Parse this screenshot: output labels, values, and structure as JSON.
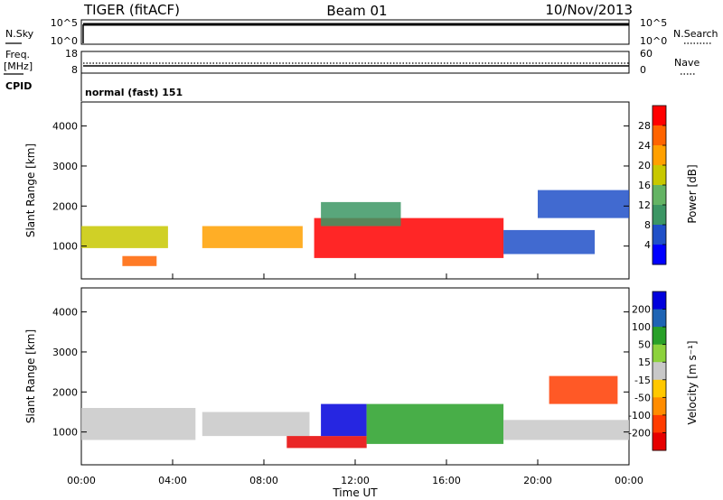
{
  "header": {
    "station": "TIGER (fitACF)",
    "beam": "Beam 01",
    "date": "10/Nov/2013"
  },
  "status_panels": {
    "nsky_label": "N.Sky",
    "nsearch_label": "N.Search",
    "nsky_ticks": [
      "10^5",
      "10^0"
    ],
    "nsearch_ticks": [
      "10^5",
      "10^0"
    ],
    "freq_label_line1": "Freq.",
    "freq_label_line2": "[MHz]",
    "freq_ticks": [
      "18",
      "8"
    ],
    "nave_label": "Nave",
    "nave_ticks": [
      "60",
      "0"
    ],
    "cpid_label": "CPID",
    "cpid_value": "normal (fast) 151"
  },
  "chart_data": [
    {
      "type": "heatmap",
      "quantity": "Power",
      "ylabel": "Slant Range [km]",
      "xlabel": "Time UT",
      "ylim": [
        180,
        4600
      ],
      "yticks": [
        "1000",
        "2000",
        "3000",
        "4000"
      ],
      "xticks": [
        "00:00",
        "04:00",
        "08:00",
        "12:00",
        "16:00",
        "20:00",
        "00:00"
      ],
      "colorbar": {
        "label": "Power [dB]",
        "ticks": [
          "28",
          "24",
          "20",
          "16",
          "12",
          "8",
          "4"
        ],
        "colors": [
          "#ff0000",
          "#ff6400",
          "#ffa000",
          "#c8c800",
          "#64b464",
          "#3c9664",
          "#2050c8",
          "#0000ff"
        ]
      },
      "features": [
        {
          "t0": 0.0,
          "t1": 3.8,
          "r0": 950,
          "r1": 1500,
          "level": 3
        },
        {
          "t0": 1.8,
          "t1": 3.3,
          "r0": 500,
          "r1": 750,
          "level": 1
        },
        {
          "t0": 5.3,
          "t1": 9.7,
          "r0": 950,
          "r1": 1500,
          "level": 2
        },
        {
          "t0": 10.2,
          "t1": 18.5,
          "r0": 700,
          "r1": 1700,
          "level": 0
        },
        {
          "t0": 10.5,
          "t1": 14.0,
          "r0": 1500,
          "r1": 2100,
          "level": 5
        },
        {
          "t0": 18.5,
          "t1": 22.5,
          "r0": 800,
          "r1": 1400,
          "level": 6
        },
        {
          "t0": 20.0,
          "t1": 24.0,
          "r0": 1700,
          "r1": 2400,
          "level": 6
        }
      ]
    },
    {
      "type": "heatmap",
      "quantity": "Velocity",
      "ylabel": "Slant Range [km]",
      "xlabel": "Time UT",
      "ylim": [
        180,
        4600
      ],
      "yticks": [
        "1000",
        "2000",
        "3000",
        "4000"
      ],
      "xticks": [
        "00:00",
        "04:00",
        "08:00",
        "12:00",
        "16:00",
        "20:00",
        "00:00"
      ],
      "colorbar": {
        "label": "Velocity [m s⁻¹]",
        "ticks": [
          "200",
          "100",
          "50",
          "15",
          "-15",
          "-50",
          "-100",
          "-200"
        ],
        "colors": [
          "#0000dc",
          "#1e64b4",
          "#28a028",
          "#8cd23c",
          "#c8c8c8",
          "#ffc800",
          "#ff8c00",
          "#ff3c00",
          "#e60000"
        ]
      },
      "features": [
        {
          "t0": 0.0,
          "t1": 5.0,
          "r0": 800,
          "r1": 1600,
          "level": 4
        },
        {
          "t0": 5.3,
          "t1": 10.0,
          "r0": 900,
          "r1": 1500,
          "level": 4
        },
        {
          "t0": 9.0,
          "t1": 12.5,
          "r0": 600,
          "r1": 900,
          "level": 8
        },
        {
          "t0": 10.5,
          "t1": 12.5,
          "r0": 900,
          "r1": 1700,
          "level": 0
        },
        {
          "t0": 12.5,
          "t1": 18.5,
          "r0": 700,
          "r1": 1700,
          "level": 2
        },
        {
          "t0": 18.5,
          "t1": 24.0,
          "r0": 800,
          "r1": 1300,
          "level": 4
        },
        {
          "t0": 20.5,
          "t1": 23.5,
          "r0": 1700,
          "r1": 2400,
          "level": 7
        }
      ]
    }
  ]
}
